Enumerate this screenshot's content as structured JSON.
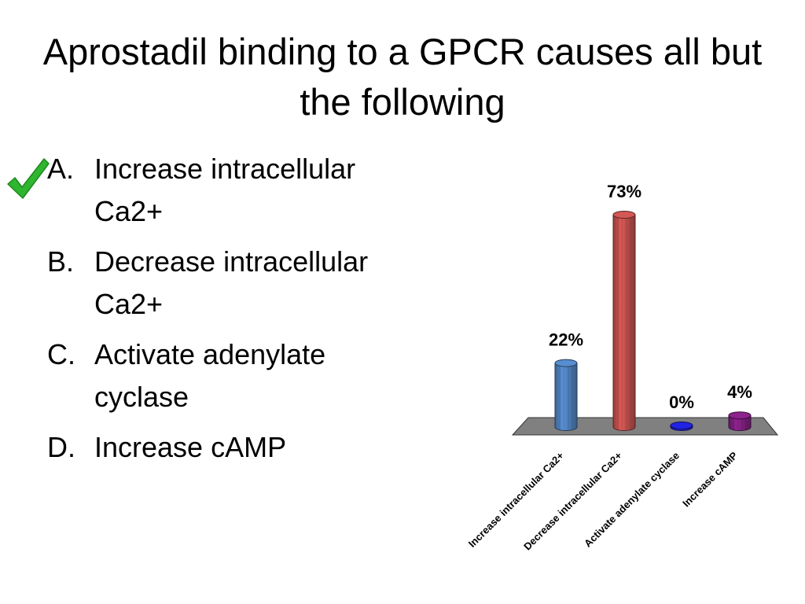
{
  "slide": {
    "title": "Aprostadil binding to a GPCR causes all but the following",
    "correct_answer_icon": "checkmark-icon",
    "correct_answer_color": "#2fb52f"
  },
  "answers": [
    {
      "letter": "A.",
      "text": "Increase intracellular Ca2+",
      "marked_correct": true
    },
    {
      "letter": "B.",
      "text": "Decrease intracellular Ca2+",
      "marked_correct": false
    },
    {
      "letter": "C.",
      "text": "Activate adenylate cyclase",
      "marked_correct": false
    },
    {
      "letter": "D.",
      "text": "Increase cAMP",
      "marked_correct": false
    }
  ],
  "chart_data": {
    "type": "bar",
    "style": "3d-cylinder",
    "categories": [
      "Increase intracellular Ca2+",
      "Decrease intracellular Ca2+",
      "Activate adenylate cyclase",
      "Increase cAMP"
    ],
    "values": [
      22,
      73,
      0,
      4
    ],
    "value_labels": [
      "22%",
      "73%",
      "0%",
      "4%"
    ],
    "colors": [
      "#4f81bd",
      "#c0504d",
      "#1f1fd0",
      "#7f1f7f"
    ],
    "floor_color": "#808080",
    "title": "",
    "xlabel": "",
    "ylabel": "",
    "ylim": [
      0,
      73
    ],
    "grid": false,
    "legend": false
  }
}
